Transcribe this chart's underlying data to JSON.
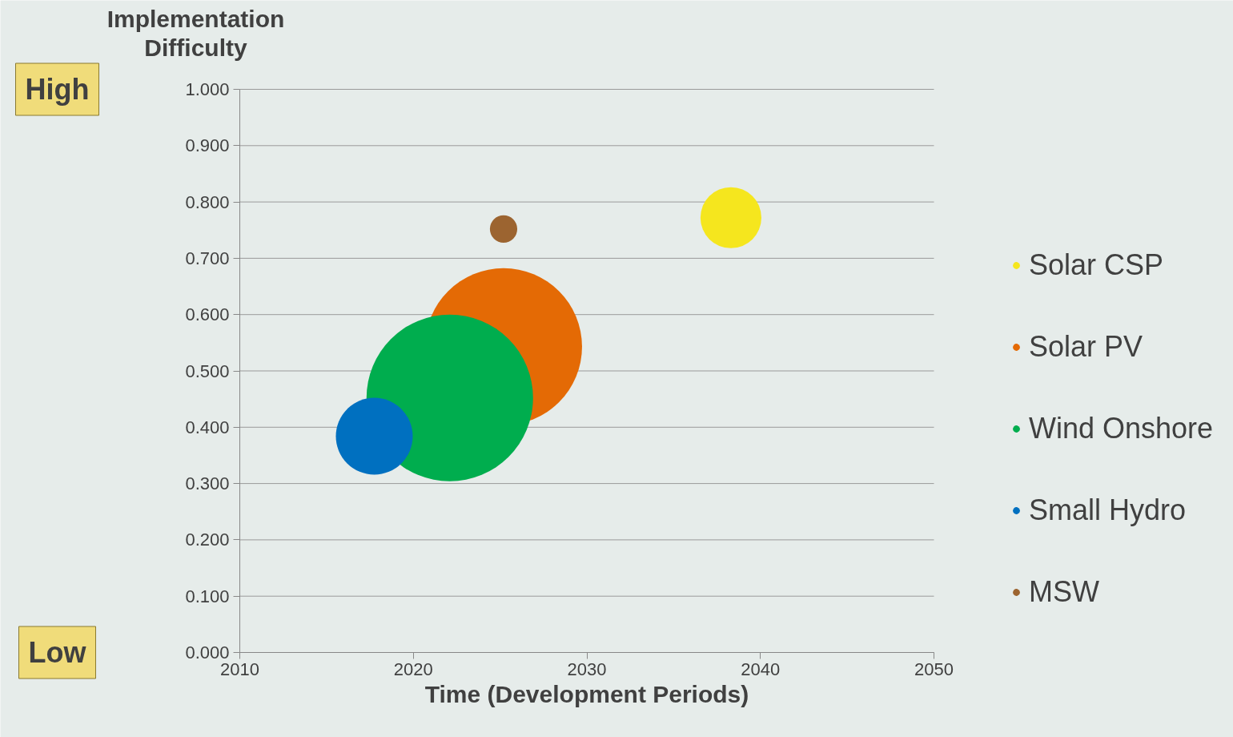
{
  "chart_data": {
    "type": "bubble",
    "xlabel": "Time (Development Periods)",
    "ylabel": "Implementation Difficulty",
    "xlim": [
      2010,
      2050
    ],
    "xticks": [
      2010,
      2020,
      2030,
      2040,
      2050
    ],
    "ylim": [
      0,
      1
    ],
    "yticks": [
      {
        "value": 0,
        "label": "0.000"
      },
      {
        "value": 0.1,
        "label": "0.100"
      },
      {
        "value": 0.2,
        "label": "0.200"
      },
      {
        "value": 0.3,
        "label": "0.300"
      },
      {
        "value": 0.4,
        "label": "0.400"
      },
      {
        "value": 0.5,
        "label": "0.500"
      },
      {
        "value": 0.6,
        "label": "0.600"
      },
      {
        "value": 0.7,
        "label": "0.700"
      },
      {
        "value": 0.8,
        "label": "0.800"
      },
      {
        "value": 0.9,
        "label": "0.900"
      },
      {
        "value": 1,
        "label": "1.000"
      }
    ],
    "grid": "y",
    "legend": "right",
    "annotations": [
      "High",
      "Low"
    ],
    "series": [
      {
        "name": "Solar CSP",
        "color": "#f5e61e",
        "x": [
          2038.3
        ],
        "values": [
          0.772
        ],
        "sizes": [
          0.134
        ]
      },
      {
        "name": "Solar PV",
        "color": "#e46a05",
        "x": [
          2025.2
        ],
        "values": [
          0.543
        ],
        "sizes": [
          0.888
        ]
      },
      {
        "name": "Wind Onshore",
        "color": "#00ad4e",
        "x": [
          2022.1
        ],
        "values": [
          0.452
        ],
        "sizes": [
          1
        ]
      },
      {
        "name": "Small Hydro",
        "color": "#0070c0",
        "x": [
          2017.75
        ],
        "values": [
          0.384
        ],
        "sizes": [
          0.213
        ]
      },
      {
        "name": "MSW",
        "color": "#9c6430",
        "x": [
          2025.2
        ],
        "values": [
          0.752
        ],
        "sizes": [
          0.027
        ]
      }
    ]
  }
}
